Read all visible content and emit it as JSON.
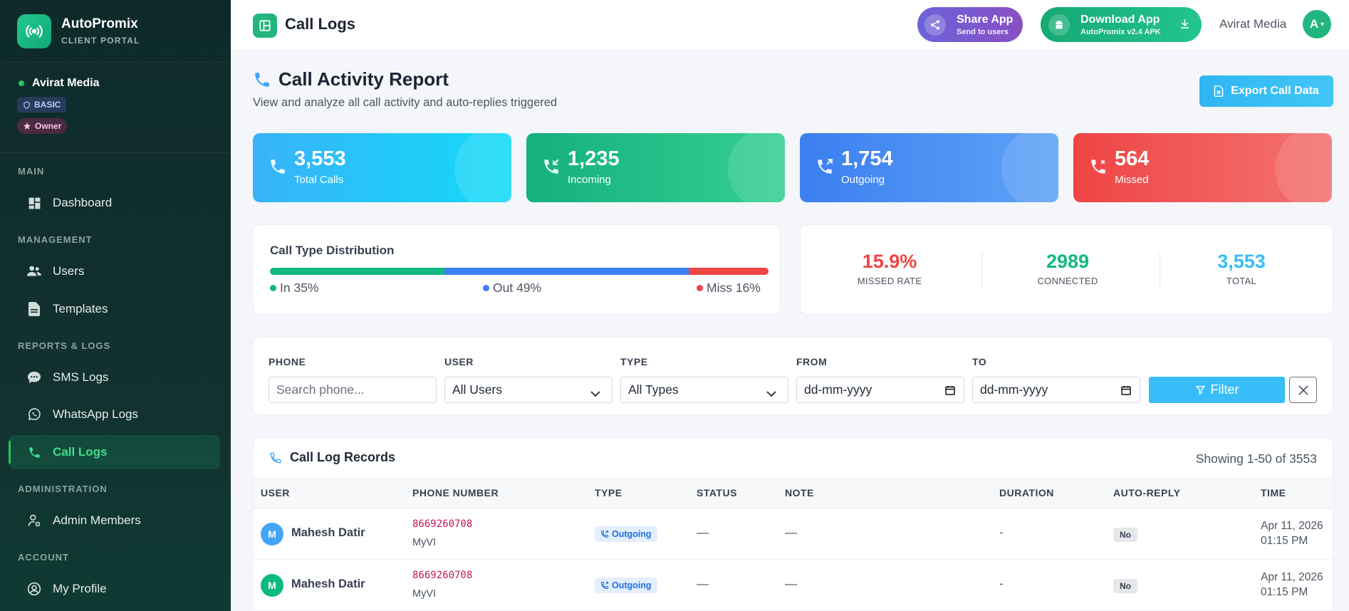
{
  "brand": {
    "name": "AutoPromix",
    "subtitle": "CLIENT PORTAL"
  },
  "account": {
    "name": "Avirat Media",
    "plan": "BASIC",
    "role": "Owner"
  },
  "sidebar": {
    "sections": [
      {
        "label": "MAIN"
      },
      {
        "label": "MANAGEMENT"
      },
      {
        "label": "REPORTS & LOGS"
      },
      {
        "label": "ADMINISTRATION"
      },
      {
        "label": "ACCOUNT"
      }
    ],
    "items": [
      {
        "label": "Dashboard",
        "icon": "dashboard-icon"
      },
      {
        "label": "Users",
        "icon": "users-icon"
      },
      {
        "label": "Templates",
        "icon": "file-icon"
      },
      {
        "label": "SMS Logs",
        "icon": "chat-icon"
      },
      {
        "label": "WhatsApp Logs",
        "icon": "whatsapp-icon"
      },
      {
        "label": "Call Logs",
        "icon": "phone-icon",
        "active": true
      },
      {
        "label": "Admin Members",
        "icon": "user-cog-icon"
      },
      {
        "label": "My Profile",
        "icon": "user-circle-icon"
      }
    ]
  },
  "topbar": {
    "title": "Call Logs",
    "share": {
      "label": "Share App",
      "sub": "Send to users"
    },
    "download": {
      "label": "Download App",
      "sub": "AutoPromix v2.4 APK"
    },
    "user": "Avirat Media",
    "avatar": "A"
  },
  "report": {
    "title": "Call Activity Report",
    "subtitle": "View and analyze all call activity and auto-replies triggered",
    "export_label": "Export Call Data"
  },
  "stats": [
    {
      "value": "3,553",
      "label": "Total Calls"
    },
    {
      "value": "1,235",
      "label": "Incoming"
    },
    {
      "value": "1,754",
      "label": "Outgoing"
    },
    {
      "value": "564",
      "label": "Missed"
    }
  ],
  "distribution": {
    "title": "Call Type Distribution",
    "segments": [
      {
        "label": "In 35%",
        "percent": 35,
        "color": "#10b981"
      },
      {
        "label": "Out 49%",
        "percent": 49,
        "color": "#3b82f6"
      },
      {
        "label": "Miss 16%",
        "percent": 16,
        "color": "#ef4444"
      }
    ]
  },
  "summary": [
    {
      "value": "15.9%",
      "label": "MISSED RATE",
      "color": "#ef4444"
    },
    {
      "value": "2989",
      "label": "CONNECTED",
      "color": "#10b981"
    },
    {
      "value": "3,553",
      "label": "TOTAL",
      "color": "#38bdf8"
    }
  ],
  "filters": {
    "phone_label": "PHONE",
    "phone_placeholder": "Search phone...",
    "user_label": "USER",
    "user_value": "All Users",
    "type_label": "TYPE",
    "type_value": "All Types",
    "from_label": "FROM",
    "from_value": "dd-mm-yyyy",
    "to_label": "TO",
    "to_value": "dd-mm-yyyy",
    "filter_label": "Filter"
  },
  "records": {
    "title": "Call Log Records",
    "count": "Showing 1-50 of 3553",
    "columns": [
      "USER",
      "PHONE NUMBER",
      "TYPE",
      "STATUS",
      "NOTE",
      "DURATION",
      "AUTO-REPLY",
      "TIME"
    ],
    "rows": [
      {
        "initial": "M",
        "avatar_color": "#42a5f5",
        "user": "Mahesh Datir",
        "phone": "8669260708",
        "carrier": "MyVI",
        "type": "Outgoing",
        "status": "—",
        "note": "—",
        "duration": "-",
        "auto_reply": "No",
        "date": "Apr 11, 2026",
        "time": "01:15 PM"
      },
      {
        "initial": "M",
        "avatar_color": "#10b981",
        "user": "Mahesh Datir",
        "phone": "8669260708",
        "carrier": "MyVI",
        "type": "Outgoing",
        "status": "—",
        "note": "—",
        "duration": "-",
        "auto_reply": "No",
        "date": "Apr 11, 2026",
        "time": "01:15 PM"
      }
    ]
  }
}
